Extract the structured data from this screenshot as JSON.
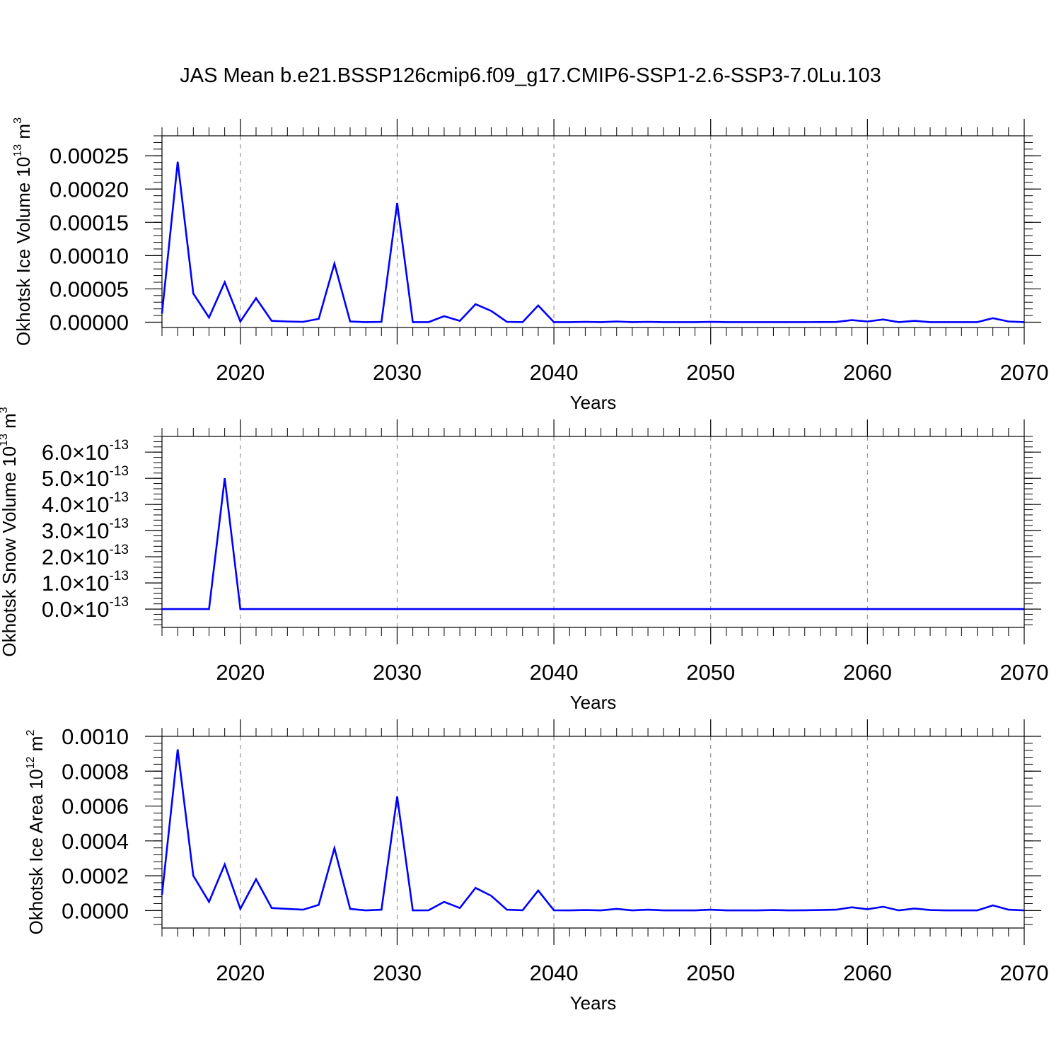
{
  "title": "JAS Mean b.e21.BSSP126cmip6.f09_g17.CMIP6-SSP1-2.6-SSP3-7.0Lu.103",
  "colors": {
    "line": "#0000ff",
    "axis": "#000000",
    "grid": "#808080"
  },
  "chart_data": [
    {
      "type": "line",
      "ylabel": "Okhotsk Ice Volume 10",
      "ylabel_sup": "13",
      "ylabel_unit": " m",
      "ylabel_unit_sup": "3",
      "xlabel": "Years",
      "xlim": [
        2015,
        2070
      ],
      "ylim": [
        -8e-06,
        0.00028
      ],
      "xticks": [
        2020,
        2030,
        2040,
        2050,
        2060,
        2070
      ],
      "xtick_labels": [
        "2020",
        "2030",
        "2040",
        "2050",
        "2060",
        "2070"
      ],
      "yticks": [
        0,
        5e-05,
        0.0001,
        0.00015,
        0.0002,
        0.00025
      ],
      "ytick_labels": [
        "0.00000",
        "0.00005",
        "0.00010",
        "0.00015",
        "0.00020",
        "0.00025"
      ],
      "grid": "vertical dashed at major x ticks",
      "series": [
        {
          "x": [
            2015,
            2016,
            2017,
            2018,
            2019,
            2020,
            2021,
            2022,
            2023,
            2024,
            2025,
            2026,
            2027,
            2028,
            2029,
            2030,
            2031,
            2032,
            2033,
            2034,
            2035,
            2036,
            2037,
            2038,
            2039,
            2040,
            2041,
            2042,
            2043,
            2044,
            2045,
            2046,
            2047,
            2048,
            2049,
            2050,
            2051,
            2052,
            2053,
            2054,
            2055,
            2056,
            2057,
            2058,
            2059,
            2060,
            2061,
            2062,
            2063,
            2064,
            2065,
            2066,
            2067,
            2068,
            2069,
            2070
          ],
          "values": [
            1.3e-05,
            0.000241,
            4.3e-05,
            7e-06,
            6e-05,
            1e-06,
            3.6e-05,
            2e-06,
            1e-06,
            5e-07,
            5e-06,
            8.8e-05,
            1e-06,
            1e-07,
            5e-07,
            0.000179,
            1e-07,
            1e-07,
            9e-06,
            2e-06,
            2.7e-05,
            1.7e-05,
            5e-07,
            1e-07,
            2.5e-05,
            1e-07,
            1e-07,
            5e-07,
            1e-07,
            1e-06,
            1e-07,
            5e-07,
            1e-07,
            1e-07,
            1e-07,
            5e-07,
            1e-07,
            1e-07,
            1e-07,
            1e-07,
            1e-07,
            1e-07,
            2e-07,
            3e-07,
            3e-06,
            1e-06,
            4e-06,
            1e-07,
            2e-06,
            1e-07,
            1e-07,
            1e-07,
            1e-07,
            6e-06,
            1e-06,
            1e-07
          ]
        }
      ]
    },
    {
      "type": "line",
      "ylabel": "Okhotsk Snow Volume 10",
      "ylabel_sup": "13",
      "ylabel_unit": " m",
      "ylabel_unit_sup": "3",
      "xlabel": "Years",
      "xlim": [
        2015,
        2070
      ],
      "ylim": [
        -7e-14,
        6.6e-13
      ],
      "xticks": [
        2020,
        2030,
        2040,
        2050,
        2060,
        2070
      ],
      "xtick_labels": [
        "2020",
        "2030",
        "2040",
        "2050",
        "2060",
        "2070"
      ],
      "yticks": [
        0,
        1e-13,
        2e-13,
        3e-13,
        4e-13,
        5e-13,
        6e-13
      ],
      "ytick_labels": [
        "0.0",
        "1.0",
        "2.0",
        "3.0",
        "4.0",
        "5.0",
        "6.0"
      ],
      "ytick_times": "×10",
      "ytick_exp": "-13",
      "grid": "vertical dashed at major x ticks",
      "series": [
        {
          "x": [
            2015,
            2016,
            2017,
            2018,
            2019,
            2020,
            2021,
            2022,
            2023,
            2024,
            2025,
            2026,
            2027,
            2028,
            2029,
            2030,
            2031,
            2032,
            2033,
            2034,
            2035,
            2036,
            2037,
            2038,
            2039,
            2040,
            2041,
            2042,
            2043,
            2044,
            2045,
            2046,
            2047,
            2048,
            2049,
            2050,
            2051,
            2052,
            2053,
            2054,
            2055,
            2056,
            2057,
            2058,
            2059,
            2060,
            2061,
            2062,
            2063,
            2064,
            2065,
            2066,
            2067,
            2068,
            2069,
            2070
          ],
          "values": [
            0,
            0,
            0,
            0,
            5e-13,
            0,
            0,
            0,
            0,
            0,
            0,
            0,
            0,
            0,
            0,
            0,
            0,
            0,
            0,
            0,
            0,
            0,
            0,
            0,
            0,
            0,
            0,
            0,
            0,
            0,
            0,
            0,
            0,
            0,
            0,
            0,
            0,
            0,
            0,
            0,
            0,
            0,
            0,
            0,
            0,
            0,
            0,
            0,
            0,
            0,
            0,
            0,
            0,
            0,
            0,
            0
          ]
        }
      ]
    },
    {
      "type": "line",
      "ylabel": "Okhotsk Ice Area 10",
      "ylabel_sup": "12",
      "ylabel_unit": " m",
      "ylabel_unit_sup": "2",
      "xlabel": "Years",
      "xlim": [
        2015,
        2070
      ],
      "ylim": [
        -0.0001,
        0.001
      ],
      "xticks": [
        2020,
        2030,
        2040,
        2050,
        2060,
        2070
      ],
      "xtick_labels": [
        "2020",
        "2030",
        "2040",
        "2050",
        "2060",
        "2070"
      ],
      "yticks": [
        0,
        0.0002,
        0.0004,
        0.0006,
        0.0008,
        0.001
      ],
      "ytick_labels": [
        "0.0000",
        "0.0002",
        "0.0004",
        "0.0006",
        "0.0008",
        "0.0010"
      ],
      "grid": "vertical dashed at major x ticks",
      "series": [
        {
          "x": [
            2015,
            2016,
            2017,
            2018,
            2019,
            2020,
            2021,
            2022,
            2023,
            2024,
            2025,
            2026,
            2027,
            2028,
            2029,
            2030,
            2031,
            2032,
            2033,
            2034,
            2035,
            2036,
            2037,
            2038,
            2039,
            2040,
            2041,
            2042,
            2043,
            2044,
            2045,
            2046,
            2047,
            2048,
            2049,
            2050,
            2051,
            2052,
            2053,
            2054,
            2055,
            2056,
            2057,
            2058,
            2059,
            2060,
            2061,
            2062,
            2063,
            2064,
            2065,
            2066,
            2067,
            2068,
            2069,
            2070
          ],
          "values": [
            9e-05,
            0.000925,
            0.0002,
            5e-05,
            0.000265,
            1e-05,
            0.00018,
            1.5e-05,
            1e-05,
            5e-06,
            3.3e-05,
            0.000358,
            1e-05,
            1e-06,
            5e-06,
            0.000655,
            1e-06,
            2e-06,
            5e-05,
            1.5e-05,
            0.00013,
            8.5e-05,
            5e-06,
            2e-06,
            0.000115,
            2e-06,
            1e-06,
            3e-06,
            1e-06,
            1e-05,
            1e-06,
            5e-06,
            1e-06,
            1e-06,
            1e-06,
            5e-06,
            1e-06,
            1e-06,
            1e-06,
            3e-06,
            1e-06,
            2e-06,
            3e-06,
            5e-06,
            1.9e-05,
            8e-06,
            2.2e-05,
            1e-06,
            1.2e-05,
            3e-06,
            1e-06,
            1e-06,
            1e-06,
            3e-05,
            5e-06,
            1e-06
          ]
        }
      ]
    }
  ]
}
